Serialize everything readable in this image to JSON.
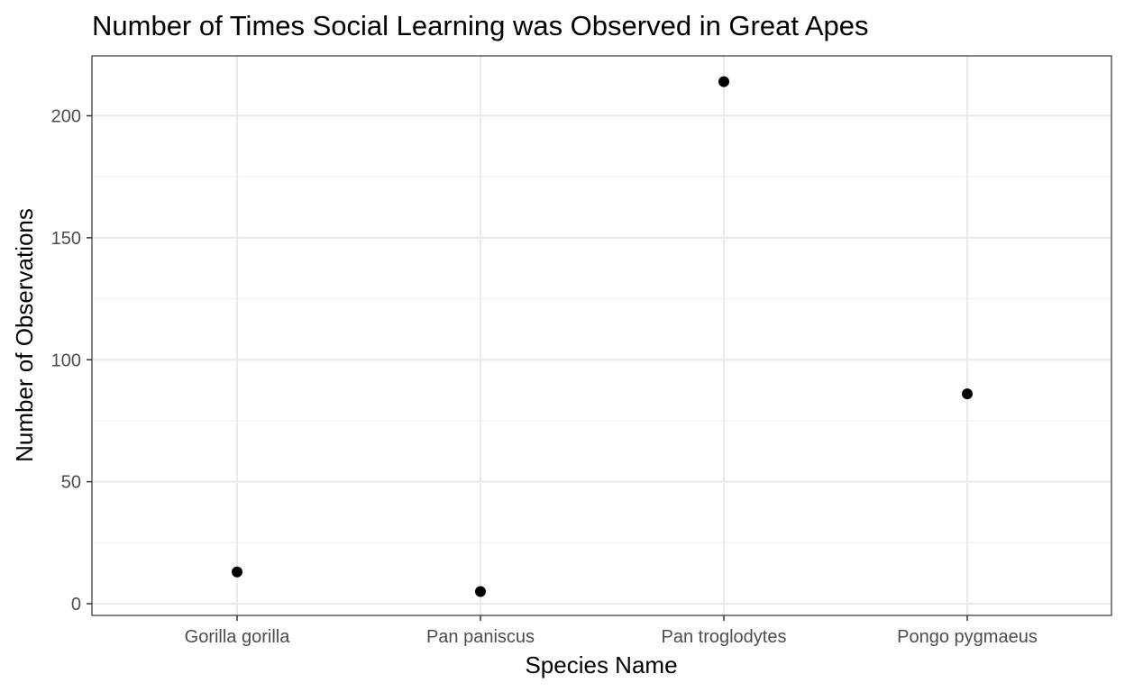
{
  "chart_data": {
    "type": "scatter",
    "title": "Number of Times Social Learning was Observed in Great Apes",
    "xlabel": "Species Name",
    "ylabel": "Number of Observations",
    "categories": [
      "Gorilla gorilla",
      "Pan paniscus",
      "Pan troglodytes",
      "Pongo pygmaeus"
    ],
    "values": [
      13,
      5,
      214,
      86
    ],
    "yticks": [
      0,
      50,
      100,
      150,
      200
    ],
    "ylim": [
      -5,
      224
    ],
    "grid": true,
    "legend": "none",
    "point_color": "#000000"
  }
}
